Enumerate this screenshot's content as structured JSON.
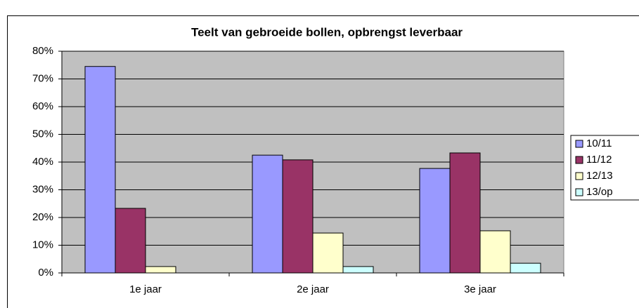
{
  "chart_data": {
    "type": "bar",
    "title": "Teelt van gebroeide bollen, opbrengst leverbaar",
    "categories": [
      "1e jaar",
      "2e jaar",
      "3e jaar"
    ],
    "series": [
      {
        "name": "10/11",
        "color": "#9999ff",
        "values": [
          74.5,
          42.5,
          37.7
        ]
      },
      {
        "name": "11/12",
        "color": "#993366",
        "values": [
          23.3,
          40.8,
          43.3
        ]
      },
      {
        "name": "12/13",
        "color": "#ffffcc",
        "values": [
          2.3,
          14.4,
          15.2
        ]
      },
      {
        "name": "13/op",
        "color": "#ccffff",
        "values": [
          0,
          2.3,
          3.5
        ]
      }
    ],
    "ylim": [
      0,
      80
    ],
    "yticks": [
      {
        "value": 0,
        "label": "0%"
      },
      {
        "value": 10,
        "label": "10%"
      },
      {
        "value": 20,
        "label": "20%"
      },
      {
        "value": 30,
        "label": "30%"
      },
      {
        "value": 40,
        "label": "40%"
      },
      {
        "value": 50,
        "label": "50%"
      },
      {
        "value": 60,
        "label": "60%"
      },
      {
        "value": 70,
        "label": "70%"
      },
      {
        "value": 80,
        "label": "80%"
      }
    ],
    "grid": true,
    "legend": "right",
    "plot_background": "#c0c0c0"
  }
}
